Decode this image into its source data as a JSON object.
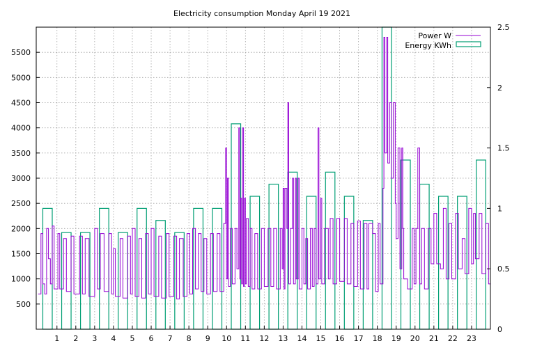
{
  "chart_data": {
    "type": "line",
    "title": "Electricity consumption Monday April 19 2021",
    "x_ticks": [
      "1",
      "2",
      "3",
      "4",
      "5",
      "6",
      "7",
      "8",
      "9",
      "10",
      "11",
      "12",
      "13",
      "14",
      "15",
      "16",
      "17",
      "18",
      "19",
      "20",
      "21",
      "22",
      "23"
    ],
    "xlim": [
      -0.1,
      24.0
    ],
    "y_left": {
      "lim": [
        0,
        6000
      ],
      "ticks": [
        "500",
        "1000",
        "1500",
        "2000",
        "2500",
        "3000",
        "3500",
        "4000",
        "4500",
        "5000",
        "5500"
      ]
    },
    "y_right": {
      "lim": [
        0,
        2.5
      ],
      "ticks": [
        "0",
        "0.5",
        "1",
        "1.5",
        "2",
        "2.5"
      ]
    },
    "grid": true,
    "legend_position": "top-right",
    "series": [
      {
        "name": "Power W",
        "color": "#9400d3",
        "axis": "left",
        "style": "steps",
        "points": [
          [
            0.0,
            700
          ],
          [
            0.15,
            1900
          ],
          [
            0.25,
            900
          ],
          [
            0.35,
            700
          ],
          [
            0.45,
            2000
          ],
          [
            0.55,
            1400
          ],
          [
            0.65,
            900
          ],
          [
            0.75,
            2050
          ],
          [
            0.85,
            800
          ],
          [
            1.05,
            1900
          ],
          [
            1.15,
            800
          ],
          [
            1.35,
            1800
          ],
          [
            1.5,
            750
          ],
          [
            1.75,
            1850
          ],
          [
            1.9,
            700
          ],
          [
            2.2,
            1850
          ],
          [
            2.35,
            700
          ],
          [
            2.5,
            1800
          ],
          [
            2.7,
            650
          ],
          [
            3.0,
            2000
          ],
          [
            3.15,
            800
          ],
          [
            3.3,
            1900
          ],
          [
            3.5,
            750
          ],
          [
            3.75,
            1900
          ],
          [
            3.9,
            700
          ],
          [
            4.0,
            1600
          ],
          [
            4.1,
            650
          ],
          [
            4.35,
            1800
          ],
          [
            4.5,
            620
          ],
          [
            4.75,
            1850
          ],
          [
            4.9,
            700
          ],
          [
            5.0,
            2000
          ],
          [
            5.15,
            650
          ],
          [
            5.35,
            1800
          ],
          [
            5.5,
            620
          ],
          [
            5.7,
            1900
          ],
          [
            5.85,
            700
          ],
          [
            6.0,
            2000
          ],
          [
            6.15,
            650
          ],
          [
            6.4,
            1850
          ],
          [
            6.55,
            620
          ],
          [
            6.8,
            1900
          ],
          [
            6.95,
            650
          ],
          [
            7.2,
            1850
          ],
          [
            7.35,
            600
          ],
          [
            7.5,
            1800
          ],
          [
            7.7,
            650
          ],
          [
            7.9,
            1900
          ],
          [
            8.05,
            700
          ],
          [
            8.2,
            2000
          ],
          [
            8.35,
            800
          ],
          [
            8.5,
            1900
          ],
          [
            8.65,
            750
          ],
          [
            8.8,
            1800
          ],
          [
            8.95,
            700
          ],
          [
            9.15,
            1900
          ],
          [
            9.3,
            750
          ],
          [
            9.5,
            1900
          ],
          [
            9.65,
            750
          ],
          [
            9.85,
            2100
          ],
          [
            9.95,
            3600
          ],
          [
            10.0,
            1000
          ],
          [
            10.05,
            3000
          ],
          [
            10.1,
            850
          ],
          [
            10.2,
            2000
          ],
          [
            10.3,
            900
          ],
          [
            10.45,
            2000
          ],
          [
            10.55,
            1200
          ],
          [
            10.65,
            4000
          ],
          [
            10.7,
            1000
          ],
          [
            10.75,
            2600
          ],
          [
            10.8,
            900
          ],
          [
            10.85,
            4000
          ],
          [
            10.9,
            850
          ],
          [
            10.95,
            2600
          ],
          [
            11.0,
            900
          ],
          [
            11.05,
            2200
          ],
          [
            11.15,
            850
          ],
          [
            11.25,
            2000
          ],
          [
            11.35,
            800
          ],
          [
            11.5,
            1900
          ],
          [
            11.65,
            800
          ],
          [
            11.85,
            2000
          ],
          [
            12.0,
            850
          ],
          [
            12.2,
            2000
          ],
          [
            12.35,
            850
          ],
          [
            12.5,
            2000
          ],
          [
            12.65,
            800
          ],
          [
            12.85,
            2000
          ],
          [
            12.95,
            1200
          ],
          [
            13.0,
            2800
          ],
          [
            13.05,
            800
          ],
          [
            13.1,
            2800
          ],
          [
            13.2,
            2000
          ],
          [
            13.25,
            4500
          ],
          [
            13.3,
            900
          ],
          [
            13.4,
            2000
          ],
          [
            13.5,
            3000
          ],
          [
            13.55,
            900
          ],
          [
            13.65,
            3000
          ],
          [
            13.7,
            1000
          ],
          [
            13.8,
            3000
          ],
          [
            13.85,
            800
          ],
          [
            14.0,
            2000
          ],
          [
            14.1,
            900
          ],
          [
            14.2,
            1800
          ],
          [
            14.3,
            800
          ],
          [
            14.45,
            2000
          ],
          [
            14.55,
            850
          ],
          [
            14.65,
            2000
          ],
          [
            14.75,
            900
          ],
          [
            14.85,
            4000
          ],
          [
            14.9,
            1000
          ],
          [
            15.0,
            2600
          ],
          [
            15.05,
            900
          ],
          [
            15.2,
            2000
          ],
          [
            15.4,
            1000
          ],
          [
            15.5,
            2200
          ],
          [
            15.65,
            900
          ],
          [
            15.85,
            2200
          ],
          [
            16.0,
            950
          ],
          [
            16.25,
            2200
          ],
          [
            16.4,
            900
          ],
          [
            16.6,
            2100
          ],
          [
            16.75,
            850
          ],
          [
            16.95,
            2150
          ],
          [
            17.1,
            800
          ],
          [
            17.3,
            2100
          ],
          [
            17.45,
            800
          ],
          [
            17.55,
            2100
          ],
          [
            17.75,
            1900
          ],
          [
            17.9,
            750
          ],
          [
            18.05,
            2100
          ],
          [
            18.15,
            900
          ],
          [
            18.3,
            2800
          ],
          [
            18.35,
            5800
          ],
          [
            18.4,
            3500
          ],
          [
            18.5,
            5800
          ],
          [
            18.55,
            3300
          ],
          [
            18.65,
            4500
          ],
          [
            18.75,
            3000
          ],
          [
            18.85,
            4500
          ],
          [
            18.95,
            2500
          ],
          [
            19.0,
            1800
          ],
          [
            19.1,
            3600
          ],
          [
            19.2,
            1200
          ],
          [
            19.3,
            3600
          ],
          [
            19.35,
            2000
          ],
          [
            19.4,
            1000
          ],
          [
            19.6,
            800
          ],
          [
            19.85,
            2000
          ],
          [
            19.95,
            900
          ],
          [
            20.05,
            2000
          ],
          [
            20.15,
            3600
          ],
          [
            20.25,
            900
          ],
          [
            20.35,
            2000
          ],
          [
            20.5,
            800
          ],
          [
            20.7,
            2000
          ],
          [
            20.85,
            1300
          ],
          [
            21.0,
            2300
          ],
          [
            21.15,
            1300
          ],
          [
            21.35,
            1200
          ],
          [
            21.5,
            2400
          ],
          [
            21.65,
            1000
          ],
          [
            21.8,
            2100
          ],
          [
            21.95,
            1000
          ],
          [
            22.15,
            2300
          ],
          [
            22.3,
            1200
          ],
          [
            22.5,
            1800
          ],
          [
            22.65,
            1100
          ],
          [
            22.85,
            2400
          ],
          [
            23.0,
            1300
          ],
          [
            23.1,
            2300
          ],
          [
            23.2,
            1400
          ],
          [
            23.4,
            2300
          ],
          [
            23.55,
            1100
          ],
          [
            23.75,
            2100
          ],
          [
            23.9,
            900
          ],
          [
            24.0,
            2100
          ]
        ]
      },
      {
        "name": "Energy KWh",
        "color": "#009e73",
        "axis": "right",
        "style": "boxes",
        "hours": [
          0,
          1,
          2,
          3,
          4,
          5,
          6,
          7,
          8,
          9,
          10,
          11,
          12,
          13,
          14,
          15,
          16,
          17,
          18,
          19,
          20,
          21,
          22,
          23
        ],
        "values": [
          1.0,
          0.8,
          0.8,
          1.0,
          0.8,
          1.0,
          0.9,
          0.8,
          1.0,
          1.0,
          1.7,
          1.1,
          1.2,
          1.3,
          1.1,
          1.3,
          1.1,
          0.9,
          2.5,
          1.4,
          1.2,
          1.1,
          1.1,
          1.4
        ]
      }
    ]
  }
}
